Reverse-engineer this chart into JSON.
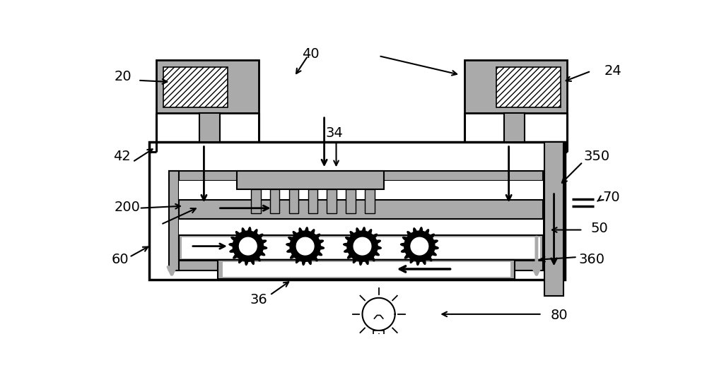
{
  "bg_color": "#ffffff",
  "gray": "#aaaaaa",
  "black": "#000000",
  "figsize": [
    10.0,
    5.31
  ],
  "dpi": 100
}
